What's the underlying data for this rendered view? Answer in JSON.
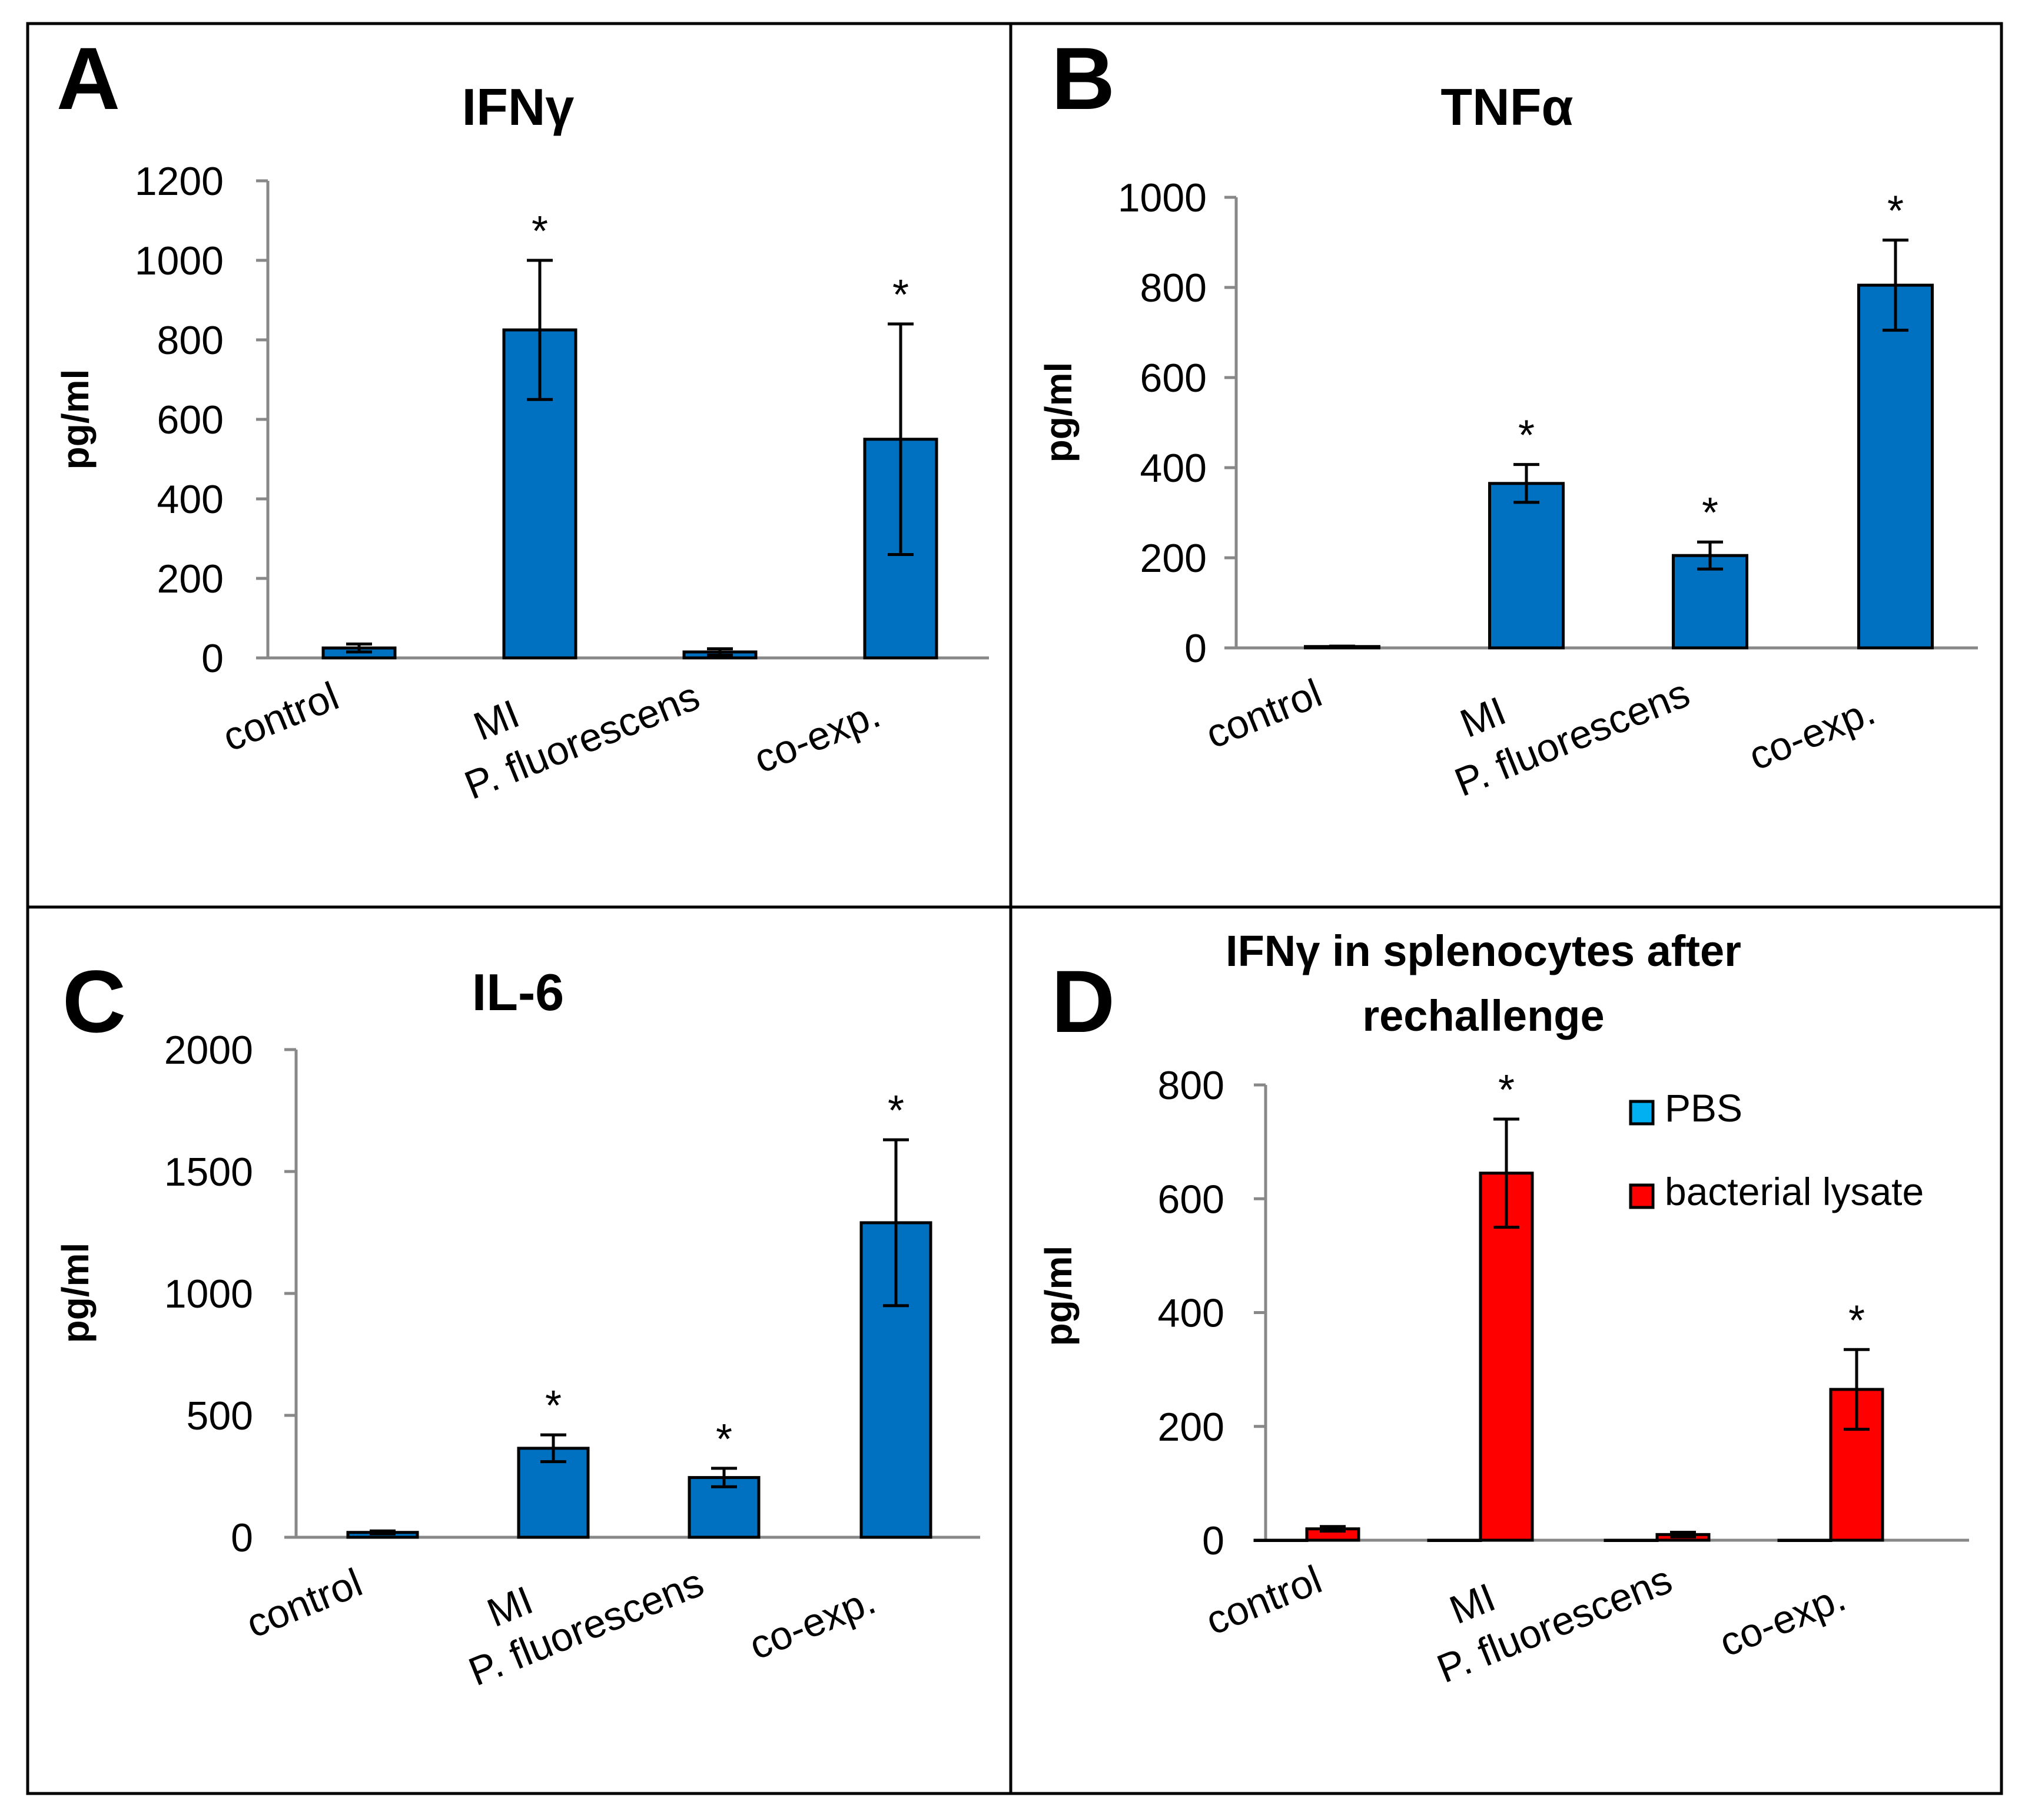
{
  "chart_data": [
    {
      "type": "bar",
      "panel_label": "A",
      "title": "IFNγ",
      "ylabel": "pg/ml",
      "xlabel": "",
      "ylim": [
        0,
        1200
      ],
      "yticks": [
        0,
        200,
        400,
        600,
        800,
        1000,
        1200
      ],
      "categories": [
        "control",
        "MI",
        "P. fluorescens",
        "co-exp."
      ],
      "series": [
        {
          "name": "",
          "color": "#0070C0",
          "values": [
            25,
            825,
            15,
            550
          ],
          "errors": [
            10,
            175,
            8,
            290
          ]
        }
      ],
      "annotations": [
        "",
        "*",
        "",
        "*"
      ],
      "legend": null
    },
    {
      "type": "bar",
      "panel_label": "B",
      "title": "TNFα",
      "ylabel": "pg/ml",
      "xlabel": "",
      "ylim": [
        0,
        1000
      ],
      "yticks": [
        0,
        200,
        400,
        600,
        800,
        1000
      ],
      "categories": [
        "control",
        "MI",
        "P. fluorescens",
        "co-exp."
      ],
      "series": [
        {
          "name": "",
          "color": "#0070C0",
          "values": [
            3,
            365,
            205,
            805
          ],
          "errors": [
            1,
            42,
            30,
            100
          ]
        }
      ],
      "annotations": [
        "",
        "*",
        "*",
        "*"
      ],
      "legend": null
    },
    {
      "type": "bar",
      "panel_label": "C",
      "title": "IL-6",
      "ylabel": "pg/ml",
      "xlabel": "",
      "ylim": [
        0,
        2000
      ],
      "yticks": [
        0,
        500,
        1000,
        1500,
        2000
      ],
      "categories": [
        "control",
        "MI",
        "P. fluorescens",
        "co-exp."
      ],
      "series": [
        {
          "name": "",
          "color": "#0070C0",
          "values": [
            20,
            365,
            245,
            1290
          ],
          "errors": [
            6,
            55,
            38,
            340
          ]
        }
      ],
      "annotations": [
        "",
        "*",
        "*",
        "*"
      ],
      "legend": null
    },
    {
      "type": "bar",
      "panel_label": "D",
      "title": "IFNγ in splenocytes after rechallenge",
      "title_lines": [
        "IFNγ in splenocytes after",
        "rechallenge"
      ],
      "ylabel": "pg/ml",
      "xlabel": "",
      "ylim": [
        0,
        800
      ],
      "yticks": [
        0,
        200,
        400,
        600,
        800
      ],
      "categories": [
        "control",
        "MI",
        "P. fluorescens",
        "co-exp."
      ],
      "series": [
        {
          "name": "PBS",
          "color": "#00B0F0",
          "values": [
            0,
            0,
            0,
            0
          ],
          "errors": [
            0,
            0,
            0,
            0
          ]
        },
        {
          "name": "bacterial lysate",
          "color": "#FF0000",
          "values": [
            20,
            645,
            10,
            265
          ],
          "errors": [
            4,
            95,
            4,
            70
          ]
        }
      ],
      "annotations": [
        "",
        "*",
        "",
        "*"
      ],
      "legend": "top-right"
    }
  ]
}
